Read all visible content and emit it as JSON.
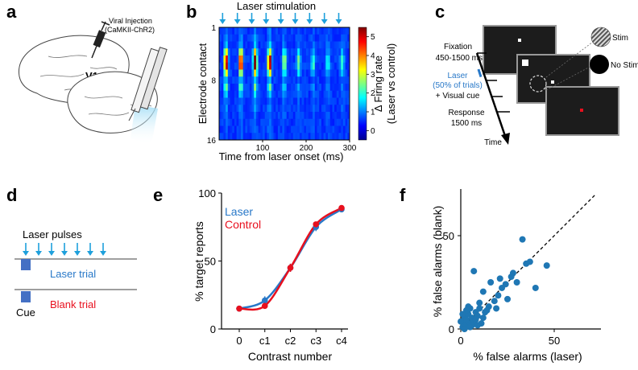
{
  "panels": {
    "a": {
      "label": "a",
      "injection_line1": "Viral Injection",
      "injection_line2": "(CaMKII-ChR2)",
      "region": "V1"
    },
    "b": {
      "label": "b",
      "title": "Laser stimulation",
      "ylabel": "Electrode contact",
      "xlabel": "Time from laser onset (ms)",
      "cbar_label1": "Δ Firing rate",
      "cbar_label2": "(Laser vs control)"
    },
    "c": {
      "label": "c",
      "fixation": "Fixation",
      "fixation_time": "450-1500 ms",
      "laser": "Laser",
      "laser_trials": "(50% of trials)",
      "visual_cue": "+ Visual cue",
      "response": "Response",
      "response_time": "1500 ms",
      "time": "Time",
      "stim": "Stim",
      "nostim": "No Stim"
    },
    "d": {
      "label": "d",
      "laser_pulses": "Laser pulses",
      "laser_trial": "Laser trial",
      "blank_trial": "Blank trial",
      "cue": "Cue"
    },
    "e": {
      "label": "e"
    },
    "f": {
      "label": "f"
    }
  },
  "colors": {
    "laser_blue": "#2878c8",
    "control_red": "#e8101e",
    "arrow_cyan": "#1ea0dc",
    "cue_blue": "#4470c4",
    "dots_blue": "#1f77b4"
  },
  "chart_data": [
    {
      "type": "heatmap",
      "title": "Laser stimulation",
      "xlabel": "Time from laser onset (ms)",
      "ylabel": "Electrode contact",
      "x_ticks": [
        100,
        200,
        300
      ],
      "y_ticks": [
        1,
        8,
        16
      ],
      "xlim": [
        0,
        300
      ],
      "ylim": [
        1,
        16
      ],
      "colorbar": {
        "label": "Δ Firing rate (Laser vs control)",
        "ticks": [
          0,
          1,
          2,
          3,
          4,
          5
        ],
        "range": [
          -0.5,
          5.5
        ]
      },
      "pulse_times_ms": [
        8,
        42,
        75,
        108,
        142,
        175,
        208,
        242,
        275
      ],
      "contact_gain": [
        0.4,
        0.6,
        1.0,
        3.0,
        5.0,
        5.2,
        3.0,
        1.0,
        2.0,
        1.2,
        0.5,
        0.6,
        0.4,
        0.3,
        0.3,
        0.2
      ],
      "pulse_decay": [
        1.0,
        1.0,
        1.0,
        1.0,
        0.5,
        0.35,
        0.3,
        0.3,
        0.3
      ]
    },
    {
      "type": "line",
      "xlabel": "Contrast number",
      "ylabel": "% target reports",
      "categories": [
        "0",
        "c1",
        "c2",
        "c3",
        "c4"
      ],
      "yticks": [
        0,
        50,
        100
      ],
      "ylim": [
        0,
        100
      ],
      "series": [
        {
          "name": "Laser",
          "color": "#2878c8",
          "values": [
            15,
            21,
            45,
            75,
            88
          ],
          "errors": [
            2,
            3,
            3,
            3,
            2
          ]
        },
        {
          "name": "Control",
          "color": "#e8101e",
          "values": [
            15,
            17,
            45,
            77,
            89
          ],
          "errors": [
            2,
            2,
            3,
            2,
            2
          ]
        }
      ]
    },
    {
      "type": "scatter",
      "xlabel": "% false alarms (laser)",
      "ylabel": "% false alarms (blank)",
      "xticks": [
        0,
        50
      ],
      "yticks": [
        0,
        50
      ],
      "xlim": [
        0,
        75
      ],
      "ylim": [
        0,
        75
      ],
      "unity_line": true,
      "points": [
        [
          1,
          1
        ],
        [
          2,
          3
        ],
        [
          3,
          2
        ],
        [
          2,
          6
        ],
        [
          4,
          8
        ],
        [
          5,
          3
        ],
        [
          3,
          5
        ],
        [
          6,
          6
        ],
        [
          7,
          4
        ],
        [
          4,
          12
        ],
        [
          3,
          10
        ],
        [
          5,
          11
        ],
        [
          8,
          9
        ],
        [
          6,
          2
        ],
        [
          9,
          7
        ],
        [
          10,
          11
        ],
        [
          8,
          5
        ],
        [
          11,
          3
        ],
        [
          12,
          6
        ],
        [
          13,
          9
        ],
        [
          15,
          12
        ],
        [
          14,
          10
        ],
        [
          10,
          14
        ],
        [
          7,
          31
        ],
        [
          18,
          15
        ],
        [
          20,
          18
        ],
        [
          22,
          22
        ],
        [
          21,
          27
        ],
        [
          24,
          24
        ],
        [
          25,
          16
        ],
        [
          27,
          28
        ],
        [
          28,
          30
        ],
        [
          30,
          25
        ],
        [
          33,
          48
        ],
        [
          35,
          35
        ],
        [
          37,
          36
        ],
        [
          40,
          22
        ],
        [
          46,
          34
        ],
        [
          16,
          25
        ],
        [
          12,
          20
        ],
        [
          1,
          8
        ],
        [
          2,
          0
        ],
        [
          0,
          4
        ],
        [
          5,
          1
        ],
        [
          9,
          2
        ],
        [
          19,
          11
        ]
      ]
    }
  ]
}
